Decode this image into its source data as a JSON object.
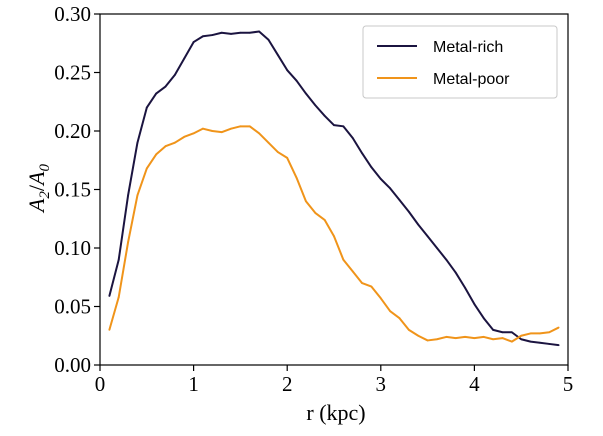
{
  "chart_data": {
    "type": "line",
    "xlabel": "r (kpc)",
    "ylabel_main": "A",
    "ylabel_sub1": "2",
    "ylabel_sep": "/",
    "ylabel_sub2": "0",
    "xlim": [
      0,
      5
    ],
    "ylim": [
      0.0,
      0.3
    ],
    "xticks": [
      0,
      1,
      2,
      3,
      4,
      5
    ],
    "xtick_labels": [
      "0",
      "1",
      "2",
      "3",
      "4",
      "5"
    ],
    "yticks": [
      0.0,
      0.05,
      0.1,
      0.15,
      0.2,
      0.25,
      0.3
    ],
    "ytick_labels": [
      "0.00",
      "0.05",
      "0.10",
      "0.15",
      "0.20",
      "0.25",
      "0.30"
    ],
    "grid": false,
    "legend_position": "top-right",
    "series": [
      {
        "name": "Metal-rich",
        "color": "#1b1440",
        "x": [
          0.1,
          0.2,
          0.3,
          0.4,
          0.5,
          0.6,
          0.7,
          0.8,
          0.9,
          1.0,
          1.1,
          1.2,
          1.3,
          1.4,
          1.5,
          1.6,
          1.7,
          1.8,
          1.9,
          2.0,
          2.1,
          2.2,
          2.3,
          2.4,
          2.5,
          2.6,
          2.7,
          2.8,
          2.9,
          3.0,
          3.1,
          3.2,
          3.3,
          3.4,
          3.5,
          3.6,
          3.7,
          3.8,
          3.9,
          4.0,
          4.1,
          4.2,
          4.3,
          4.4,
          4.5,
          4.6,
          4.7,
          4.8,
          4.9
        ],
        "y": [
          0.059,
          0.09,
          0.145,
          0.19,
          0.22,
          0.232,
          0.238,
          0.248,
          0.262,
          0.276,
          0.281,
          0.282,
          0.284,
          0.283,
          0.284,
          0.284,
          0.285,
          0.278,
          0.265,
          0.252,
          0.243,
          0.232,
          0.222,
          0.213,
          0.205,
          0.204,
          0.194,
          0.181,
          0.169,
          0.159,
          0.151,
          0.141,
          0.131,
          0.12,
          0.11,
          0.1,
          0.09,
          0.079,
          0.066,
          0.052,
          0.04,
          0.03,
          0.028,
          0.028,
          0.022,
          0.02,
          0.019,
          0.018,
          0.017
        ]
      },
      {
        "name": "Metal-poor",
        "color": "#f0941a",
        "x": [
          0.1,
          0.2,
          0.3,
          0.4,
          0.5,
          0.6,
          0.7,
          0.8,
          0.9,
          1.0,
          1.1,
          1.2,
          1.3,
          1.4,
          1.5,
          1.6,
          1.7,
          1.8,
          1.9,
          2.0,
          2.1,
          2.2,
          2.3,
          2.4,
          2.5,
          2.6,
          2.7,
          2.8,
          2.9,
          3.0,
          3.1,
          3.2,
          3.3,
          3.4,
          3.5,
          3.6,
          3.7,
          3.8,
          3.9,
          4.0,
          4.1,
          4.2,
          4.3,
          4.4,
          4.5,
          4.6,
          4.7,
          4.8,
          4.9
        ],
        "y": [
          0.03,
          0.058,
          0.105,
          0.145,
          0.168,
          0.18,
          0.187,
          0.19,
          0.195,
          0.198,
          0.202,
          0.2,
          0.199,
          0.202,
          0.204,
          0.204,
          0.198,
          0.19,
          0.182,
          0.177,
          0.16,
          0.14,
          0.13,
          0.124,
          0.11,
          0.09,
          0.08,
          0.07,
          0.067,
          0.057,
          0.046,
          0.04,
          0.03,
          0.025,
          0.021,
          0.022,
          0.024,
          0.023,
          0.024,
          0.023,
          0.024,
          0.022,
          0.023,
          0.02,
          0.025,
          0.027,
          0.027,
          0.028,
          0.032
        ]
      }
    ]
  }
}
